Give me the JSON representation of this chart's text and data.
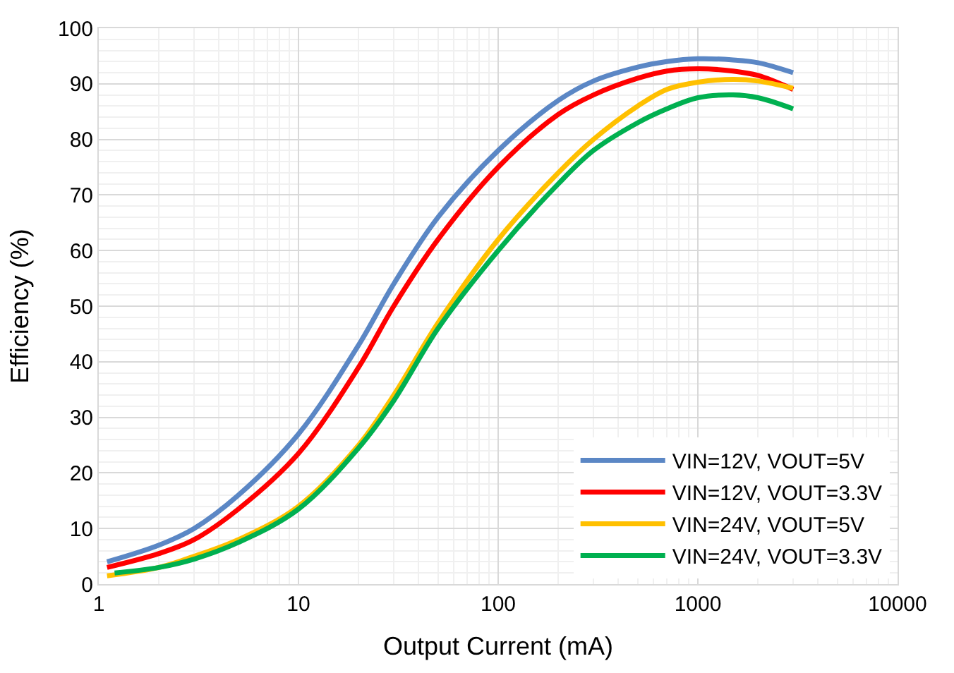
{
  "chart_data": {
    "type": "line",
    "xlabel": "Output Current (mA)",
    "ylabel": "Efficiency (%)",
    "log": "x",
    "xlim": [
      1,
      10000
    ],
    "xticks": [
      1,
      10,
      100,
      1000,
      10000
    ],
    "ylim": [
      0,
      100
    ],
    "yticks": [
      0,
      10,
      20,
      30,
      40,
      50,
      60,
      70,
      80,
      90,
      100
    ],
    "grid": true,
    "legend": "bottom right",
    "marker": "none",
    "line_style": "solid",
    "x": [
      1.1,
      2,
      3,
      5,
      10,
      20,
      30,
      50,
      100,
      200,
      300,
      500,
      700,
      1000,
      1500,
      2000,
      3000
    ],
    "series": [
      {
        "name": "VIN=12V, VOUT=5V",
        "color": "#5b87c5",
        "values": [
          4,
          7,
          10,
          16,
          27,
          43,
          54,
          66,
          78,
          87,
          90.5,
          93,
          94,
          94.5,
          94.3,
          93.8,
          92
        ]
      },
      {
        "name": "VIN=12V, VOUT=3.3V",
        "color": "#ff0000",
        "values": [
          3,
          5.5,
          8,
          13.5,
          23.5,
          39,
          50,
          62,
          75,
          84.5,
          88,
          91,
          92.3,
          92.7,
          92.3,
          91.5,
          89
        ]
      },
      {
        "name": "VIN=24V, VOUT=5V",
        "color": "#ffc000",
        "values": [
          1.5,
          3,
          5,
          8,
          14,
          25,
          34,
          47,
          62,
          74,
          80,
          86,
          89,
          90.3,
          90.8,
          90.5,
          89.2
        ]
      },
      {
        "name": "VIN=24V, VOUT=3.3V",
        "color": "#00b050",
        "x": [
          1.2,
          2,
          3,
          5,
          10,
          20,
          30,
          50,
          100,
          200,
          300,
          500,
          700,
          1000,
          1500,
          2000,
          3000
        ],
        "values": [
          2,
          3,
          4.5,
          7.5,
          13.5,
          24.5,
          33,
          46,
          60,
          72,
          78,
          83,
          85.5,
          87.5,
          88,
          87.5,
          85.5
        ]
      }
    ]
  }
}
